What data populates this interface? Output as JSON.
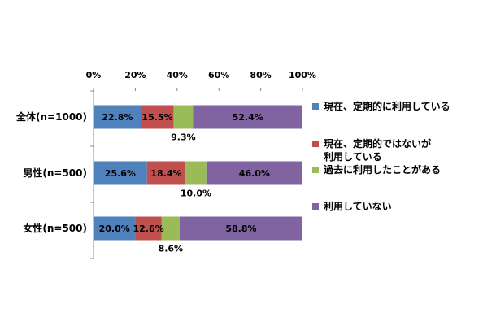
{
  "chart_data": {
    "type": "bar",
    "orientation": "horizontal",
    "stacked": true,
    "percent": true,
    "xlim": [
      0,
      100
    ],
    "x_ticks": [
      "0%",
      "20%",
      "40%",
      "60%",
      "80%",
      "100%"
    ],
    "categories": [
      "全体(n=1000)",
      "男性(n=500)",
      "女性(n=500)"
    ],
    "series": [
      {
        "name": "現在、定期的に利用している",
        "color": "#4f81bd",
        "values": [
          22.8,
          25.6,
          20.0
        ],
        "labels": [
          "22.8%",
          "25.6%",
          "20.0%"
        ]
      },
      {
        "name": "現在、定期的ではないが\n利用している",
        "color": "#c0504d",
        "values": [
          15.5,
          18.4,
          12.6
        ],
        "labels": [
          "15.5%",
          "18.4%",
          "12.6%"
        ]
      },
      {
        "name": "過去に利用したことがある",
        "color": "#9bbb59",
        "values": [
          9.3,
          10.0,
          8.6
        ],
        "labels": [
          "9.3%",
          "10.0%",
          "8.6%"
        ]
      },
      {
        "name": "利用していない",
        "color": "#8064a2",
        "values": [
          52.4,
          46.0,
          58.8
        ],
        "labels": [
          "52.4%",
          "46.0%",
          "58.8%"
        ]
      }
    ],
    "grid": false,
    "legend_position": "right"
  }
}
